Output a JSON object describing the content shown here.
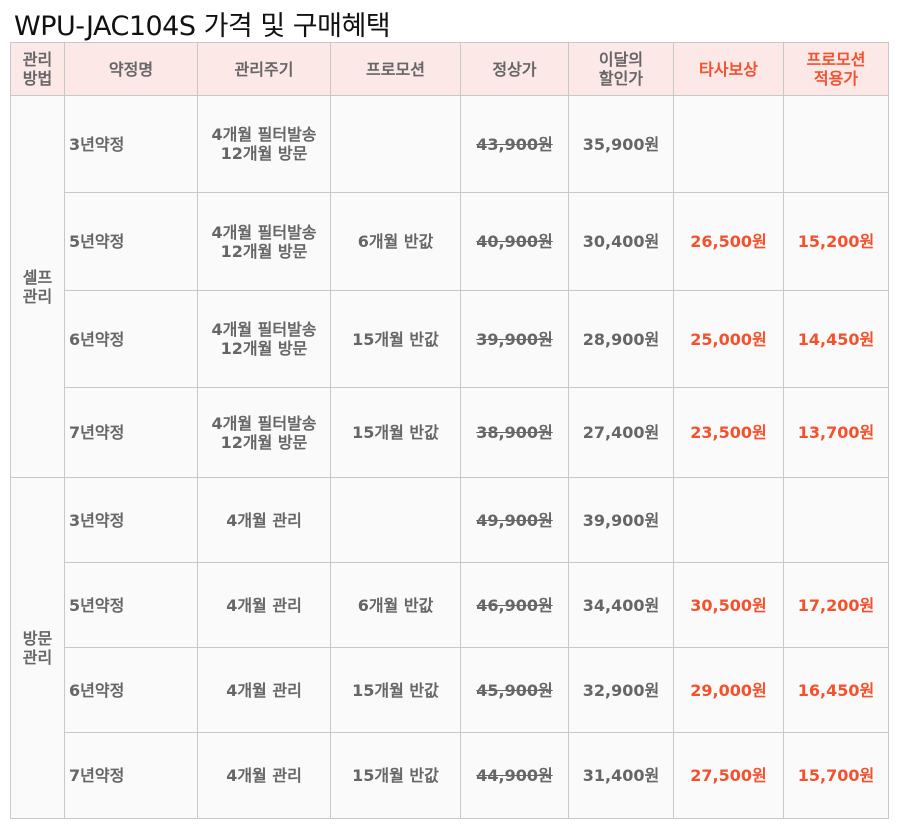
{
  "title": "WPU-JAC104S 가격 및 구매혜택",
  "accent_color": "#f4512c",
  "headers": [
    "관리\n방법",
    "약정명",
    "관리주기",
    "프로모션",
    "정상가",
    "이달의\n할인가",
    "타사보상",
    "프로모션\n적용가"
  ],
  "groups": [
    {
      "label": "셀프\n관리",
      "rows": [
        {
          "name": "3년약정",
          "cycle": "4개월 필터발송\n12개월 방문",
          "promo": "",
          "regular": "43,900원",
          "discount": "35,900원",
          "comp": "",
          "final": ""
        },
        {
          "name": "5년약정",
          "cycle": "4개월 필터발송\n12개월 방문",
          "promo": "6개월 반값",
          "regular": "40,900원",
          "discount": "30,400원",
          "comp": "26,500원",
          "final": "15,200원"
        },
        {
          "name": "6년약정",
          "cycle": "4개월 필터발송\n12개월 방문",
          "promo": "15개월 반값",
          "regular": "39,900원",
          "discount": "28,900원",
          "comp": "25,000원",
          "final": "14,450원"
        },
        {
          "name": "7년약정",
          "cycle": "4개월 필터발송\n12개월 방문",
          "promo": "15개월 반값",
          "regular": "38,900원",
          "discount": "27,400원",
          "comp": "23,500원",
          "final": "13,700원"
        }
      ]
    },
    {
      "label": "방문\n관리",
      "rows": [
        {
          "name": "3년약정",
          "cycle": "4개월 관리",
          "promo": "",
          "regular": "49,900원",
          "discount": "39,900원",
          "comp": "",
          "final": ""
        },
        {
          "name": "5년약정",
          "cycle": "4개월 관리",
          "promo": "6개월 반값",
          "regular": "46,900원",
          "discount": "34,400원",
          "comp": "30,500원",
          "final": "17,200원"
        },
        {
          "name": "6년약정",
          "cycle": "4개월 관리",
          "promo": "15개월 반값",
          "regular": "45,900원",
          "discount": "32,900원",
          "comp": "29,000원",
          "final": "16,450원"
        },
        {
          "name": "7년약정",
          "cycle": "4개월 관리",
          "promo": "15개월 반값",
          "regular": "44,900원",
          "discount": "31,400원",
          "comp": "27,500원",
          "final": "15,700원"
        }
      ]
    }
  ]
}
